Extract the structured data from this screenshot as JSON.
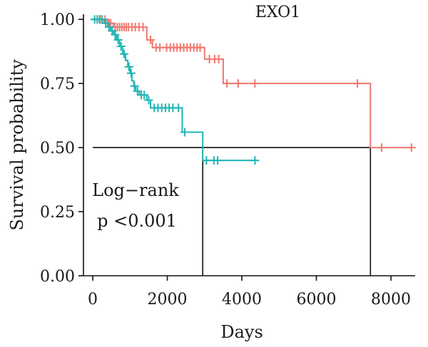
{
  "chart_data": {
    "type": "line",
    "title": "EXO1",
    "xlabel": "Days",
    "ylabel": "Survival probability",
    "xlim": [
      -250,
      8650
    ],
    "ylim": [
      0,
      1.02
    ],
    "xticks": [
      0,
      2000,
      4000,
      6000,
      8000
    ],
    "xtick_labels": [
      "0",
      "2000",
      "4000",
      "6000",
      "8000"
    ],
    "yticks": [
      0,
      0.25,
      0.5,
      0.75,
      1.0
    ],
    "ytick_labels": [
      "0.00",
      "0.25",
      "0.50",
      "0.75",
      "1.00"
    ],
    "grid": false,
    "legend": "none",
    "annotation_lines": [
      "Log−rank",
      "p <0.001"
    ],
    "median_reference": {
      "y": 0.5,
      "x_start": 0,
      "x_end": 7450,
      "verticals_at_x": [
        2950,
        7450
      ]
    },
    "series": [
      {
        "color": "#F07970",
        "steps": [
          {
            "x": 0,
            "y": 1.0
          },
          {
            "x": 400,
            "y": 0.985
          },
          {
            "x": 550,
            "y": 0.97
          },
          {
            "x": 1450,
            "y": 0.92
          },
          {
            "x": 1600,
            "y": 0.89
          },
          {
            "x": 3000,
            "y": 0.845
          },
          {
            "x": 3500,
            "y": 0.75
          },
          {
            "x": 7450,
            "y": 0.5
          },
          {
            "x": 8600,
            "y": 0.5
          }
        ],
        "censored": [
          {
            "x": 200,
            "y": 1.0
          },
          {
            "x": 330,
            "y": 1.0
          },
          {
            "x": 430,
            "y": 0.985
          },
          {
            "x": 480,
            "y": 0.985
          },
          {
            "x": 600,
            "y": 0.97
          },
          {
            "x": 660,
            "y": 0.97
          },
          {
            "x": 720,
            "y": 0.97
          },
          {
            "x": 780,
            "y": 0.97
          },
          {
            "x": 840,
            "y": 0.97
          },
          {
            "x": 900,
            "y": 0.97
          },
          {
            "x": 960,
            "y": 0.97
          },
          {
            "x": 1050,
            "y": 0.97
          },
          {
            "x": 1140,
            "y": 0.97
          },
          {
            "x": 1240,
            "y": 0.97
          },
          {
            "x": 1350,
            "y": 0.97
          },
          {
            "x": 1550,
            "y": 0.92
          },
          {
            "x": 1700,
            "y": 0.89
          },
          {
            "x": 1800,
            "y": 0.89
          },
          {
            "x": 1980,
            "y": 0.89
          },
          {
            "x": 2080,
            "y": 0.89
          },
          {
            "x": 2170,
            "y": 0.89
          },
          {
            "x": 2260,
            "y": 0.89
          },
          {
            "x": 2350,
            "y": 0.89
          },
          {
            "x": 2440,
            "y": 0.89
          },
          {
            "x": 2530,
            "y": 0.89
          },
          {
            "x": 2620,
            "y": 0.89
          },
          {
            "x": 2710,
            "y": 0.89
          },
          {
            "x": 2800,
            "y": 0.89
          },
          {
            "x": 2880,
            "y": 0.89
          },
          {
            "x": 3130,
            "y": 0.845
          },
          {
            "x": 3270,
            "y": 0.845
          },
          {
            "x": 3380,
            "y": 0.845
          },
          {
            "x": 3600,
            "y": 0.75
          },
          {
            "x": 3900,
            "y": 0.75
          },
          {
            "x": 4350,
            "y": 0.75
          },
          {
            "x": 7100,
            "y": 0.75
          },
          {
            "x": 7750,
            "y": 0.5
          },
          {
            "x": 8550,
            "y": 0.5
          }
        ]
      },
      {
        "color": "#1FB5B5",
        "steps": [
          {
            "x": 0,
            "y": 1.0
          },
          {
            "x": 300,
            "y": 0.985
          },
          {
            "x": 400,
            "y": 0.97
          },
          {
            "x": 480,
            "y": 0.955
          },
          {
            "x": 560,
            "y": 0.94
          },
          {
            "x": 640,
            "y": 0.92
          },
          {
            "x": 720,
            "y": 0.895
          },
          {
            "x": 800,
            "y": 0.865
          },
          {
            "x": 880,
            "y": 0.84
          },
          {
            "x": 940,
            "y": 0.815
          },
          {
            "x": 1000,
            "y": 0.79
          },
          {
            "x": 1050,
            "y": 0.76
          },
          {
            "x": 1100,
            "y": 0.74
          },
          {
            "x": 1150,
            "y": 0.72
          },
          {
            "x": 1250,
            "y": 0.705
          },
          {
            "x": 1450,
            "y": 0.685
          },
          {
            "x": 1550,
            "y": 0.655
          },
          {
            "x": 2400,
            "y": 0.56
          },
          {
            "x": 2950,
            "y": 0.45
          },
          {
            "x": 4400,
            "y": 0.45
          }
        ],
        "censored": [
          {
            "x": 50,
            "y": 1.0
          },
          {
            "x": 120,
            "y": 1.0
          },
          {
            "x": 180,
            "y": 1.0
          },
          {
            "x": 250,
            "y": 1.0
          },
          {
            "x": 350,
            "y": 0.985
          },
          {
            "x": 440,
            "y": 0.97
          },
          {
            "x": 520,
            "y": 0.955
          },
          {
            "x": 600,
            "y": 0.94
          },
          {
            "x": 680,
            "y": 0.92
          },
          {
            "x": 760,
            "y": 0.895
          },
          {
            "x": 840,
            "y": 0.865
          },
          {
            "x": 970,
            "y": 0.815
          },
          {
            "x": 1030,
            "y": 0.79
          },
          {
            "x": 1120,
            "y": 0.74
          },
          {
            "x": 1200,
            "y": 0.72
          },
          {
            "x": 1300,
            "y": 0.705
          },
          {
            "x": 1380,
            "y": 0.705
          },
          {
            "x": 1500,
            "y": 0.685
          },
          {
            "x": 1650,
            "y": 0.655
          },
          {
            "x": 1750,
            "y": 0.655
          },
          {
            "x": 1850,
            "y": 0.655
          },
          {
            "x": 1950,
            "y": 0.655
          },
          {
            "x": 2050,
            "y": 0.655
          },
          {
            "x": 2150,
            "y": 0.655
          },
          {
            "x": 2300,
            "y": 0.655
          },
          {
            "x": 2470,
            "y": 0.56
          },
          {
            "x": 3050,
            "y": 0.45
          },
          {
            "x": 3250,
            "y": 0.45
          },
          {
            "x": 3350,
            "y": 0.45
          },
          {
            "x": 4350,
            "y": 0.45
          }
        ]
      }
    ]
  }
}
